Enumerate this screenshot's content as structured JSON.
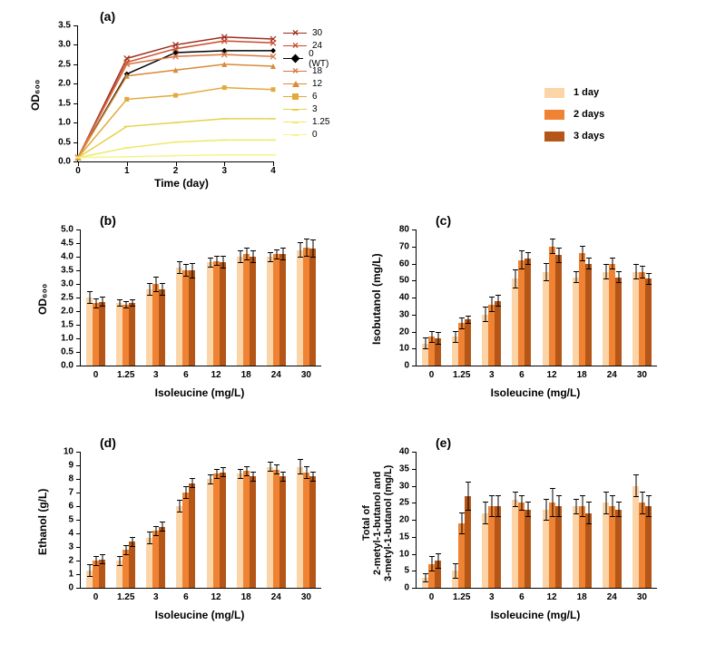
{
  "colors": {
    "day1": "#fbd5a8",
    "day2": "#ef8333",
    "day3": "#b45617",
    "background": "#ffffff",
    "axis": "#000000"
  },
  "bar_legend": [
    {
      "label": "1 day",
      "color_key": "day1"
    },
    {
      "label": "2 days",
      "color_key": "day2"
    },
    {
      "label": "3 days",
      "color_key": "day3"
    }
  ],
  "panelA": {
    "label": "(a)",
    "xlabel": "Time (day)",
    "ylabel": "OD₆₀₀",
    "xlim": [
      0,
      4
    ],
    "ylim": [
      0,
      3.5
    ],
    "xticks": [
      0,
      1,
      2,
      3,
      4
    ],
    "yticks": [
      0,
      0.5,
      1.0,
      1.5,
      2.0,
      2.5,
      3.0,
      3.5
    ],
    "series": [
      {
        "name": "30",
        "color": "#9b2d1e",
        "marker": "x",
        "y": [
          0.1,
          2.65,
          3.0,
          3.2,
          3.15
        ]
      },
      {
        "name": "24",
        "color": "#c84a2a",
        "marker": "x",
        "y": [
          0.1,
          2.55,
          2.9,
          3.1,
          3.05
        ]
      },
      {
        "name": "0 (WT)",
        "color": "#000000",
        "marker": "diamond",
        "y": [
          0.1,
          2.25,
          2.8,
          2.85,
          2.85
        ]
      },
      {
        "name": "18",
        "color": "#d97544",
        "marker": "x",
        "y": [
          0.1,
          2.5,
          2.7,
          2.75,
          2.7
        ]
      },
      {
        "name": "12",
        "color": "#d98a3a",
        "marker": "triangle",
        "y": [
          0.1,
          2.2,
          2.35,
          2.5,
          2.45
        ]
      },
      {
        "name": "6",
        "color": "#e3a93a",
        "marker": "square",
        "y": [
          0.1,
          1.6,
          1.7,
          1.9,
          1.85
        ]
      },
      {
        "name": "3",
        "color": "#e6d24a",
        "marker": "dash",
        "y": [
          0.1,
          0.9,
          1.0,
          1.1,
          1.1
        ]
      },
      {
        "name": "1.25",
        "color": "#efe96a",
        "marker": "dash",
        "y": [
          0.1,
          0.35,
          0.5,
          0.55,
          0.55
        ]
      },
      {
        "name": "0",
        "color": "#f4f58a",
        "marker": "dash",
        "y": [
          0.1,
          0.12,
          0.15,
          0.17,
          0.17
        ]
      }
    ]
  },
  "bar_common": {
    "categories": [
      "0",
      "1.25",
      "3",
      "6",
      "12",
      "18",
      "24",
      "30"
    ],
    "xlabel": "Isoleucine (mg/L)",
    "day_colors": [
      "day1",
      "day2",
      "day3"
    ]
  },
  "panelB": {
    "label": "(b)",
    "ylabel": "OD₆₀₀",
    "ylim": [
      0,
      5
    ],
    "ytick_step": 0.5,
    "data": [
      {
        "vals": [
          2.5,
          2.3,
          2.35
        ],
        "errs": [
          0.2,
          0.15,
          0.15
        ]
      },
      {
        "vals": [
          2.3,
          2.25,
          2.3
        ],
        "errs": [
          0.1,
          0.1,
          0.1
        ]
      },
      {
        "vals": [
          2.8,
          3.0,
          2.8
        ],
        "errs": [
          0.2,
          0.25,
          0.2
        ]
      },
      {
        "vals": [
          3.6,
          3.5,
          3.5
        ],
        "errs": [
          0.2,
          0.2,
          0.25
        ]
      },
      {
        "vals": [
          3.8,
          3.85,
          3.8
        ],
        "errs": [
          0.15,
          0.15,
          0.2
        ]
      },
      {
        "vals": [
          4.0,
          4.1,
          4.0
        ],
        "errs": [
          0.2,
          0.2,
          0.2
        ]
      },
      {
        "vals": [
          4.0,
          4.1,
          4.1
        ],
        "errs": [
          0.15,
          0.15,
          0.2
        ]
      },
      {
        "vals": [
          4.25,
          4.35,
          4.3
        ],
        "errs": [
          0.25,
          0.3,
          0.3
        ]
      }
    ]
  },
  "panelC": {
    "label": "(c)",
    "ylabel": "Isobutanol (mg/L)",
    "ylim": [
      0,
      80
    ],
    "ytick_step": 10,
    "data": [
      {
        "vals": [
          13,
          17,
          16
        ],
        "errs": [
          3,
          3,
          3
        ]
      },
      {
        "vals": [
          17,
          25,
          27
        ],
        "errs": [
          3,
          3,
          2
        ]
      },
      {
        "vals": [
          30,
          36,
          38
        ],
        "errs": [
          4,
          4,
          3
        ]
      },
      {
        "vals": [
          51,
          62,
          63
        ],
        "errs": [
          5,
          5,
          3
        ]
      },
      {
        "vals": [
          55,
          70,
          65
        ],
        "errs": [
          5,
          4,
          4
        ]
      },
      {
        "vals": [
          52,
          66,
          60
        ],
        "errs": [
          3,
          4,
          3
        ]
      },
      {
        "vals": [
          55,
          60,
          52
        ],
        "errs": [
          4,
          3,
          3
        ]
      },
      {
        "vals": [
          55,
          55,
          51
        ],
        "errs": [
          4,
          3,
          3
        ]
      }
    ]
  },
  "panelD": {
    "label": "(d)",
    "ylabel": "Ethanol (g/L)",
    "ylim": [
      0,
      10
    ],
    "ytick_step": 1,
    "data": [
      {
        "vals": [
          1.3,
          2.0,
          2.1
        ],
        "errs": [
          0.4,
          0.3,
          0.3
        ]
      },
      {
        "vals": [
          2.0,
          2.8,
          3.4
        ],
        "errs": [
          0.3,
          0.3,
          0.3
        ]
      },
      {
        "vals": [
          3.7,
          4.2,
          4.5
        ],
        "errs": [
          0.4,
          0.3,
          0.3
        ]
      },
      {
        "vals": [
          6.0,
          7.0,
          7.7
        ],
        "errs": [
          0.4,
          0.4,
          0.3
        ]
      },
      {
        "vals": [
          8.0,
          8.4,
          8.5
        ],
        "errs": [
          0.3,
          0.3,
          0.3
        ]
      },
      {
        "vals": [
          8.4,
          8.6,
          8.2
        ],
        "errs": [
          0.3,
          0.3,
          0.3
        ]
      },
      {
        "vals": [
          8.9,
          8.7,
          8.2
        ],
        "errs": [
          0.3,
          0.3,
          0.3
        ]
      },
      {
        "vals": [
          8.9,
          8.5,
          8.2
        ],
        "errs": [
          0.5,
          0.4,
          0.3
        ]
      }
    ]
  },
  "panelE": {
    "label": "(e)",
    "ylabel": "Total of\n2-metyl-1-butanol and\n3-metyl-1-butanol (mg/L)",
    "ylim": [
      0,
      40
    ],
    "ytick_step": 5,
    "data": [
      {
        "vals": [
          3,
          7,
          8
        ],
        "errs": [
          1,
          2,
          2
        ]
      },
      {
        "vals": [
          5,
          19,
          27
        ],
        "errs": [
          2,
          3,
          4
        ]
      },
      {
        "vals": [
          22,
          24,
          24
        ],
        "errs": [
          3,
          3,
          3
        ]
      },
      {
        "vals": [
          26,
          25,
          23
        ],
        "errs": [
          2,
          2,
          2
        ]
      },
      {
        "vals": [
          23,
          25,
          24
        ],
        "errs": [
          3,
          4,
          3
        ]
      },
      {
        "vals": [
          24,
          24,
          22
        ],
        "errs": [
          2,
          3,
          3
        ]
      },
      {
        "vals": [
          25,
          24,
          23
        ],
        "errs": [
          3,
          3,
          2
        ]
      },
      {
        "vals": [
          30,
          25,
          24
        ],
        "errs": [
          3,
          3,
          3
        ]
      }
    ]
  }
}
